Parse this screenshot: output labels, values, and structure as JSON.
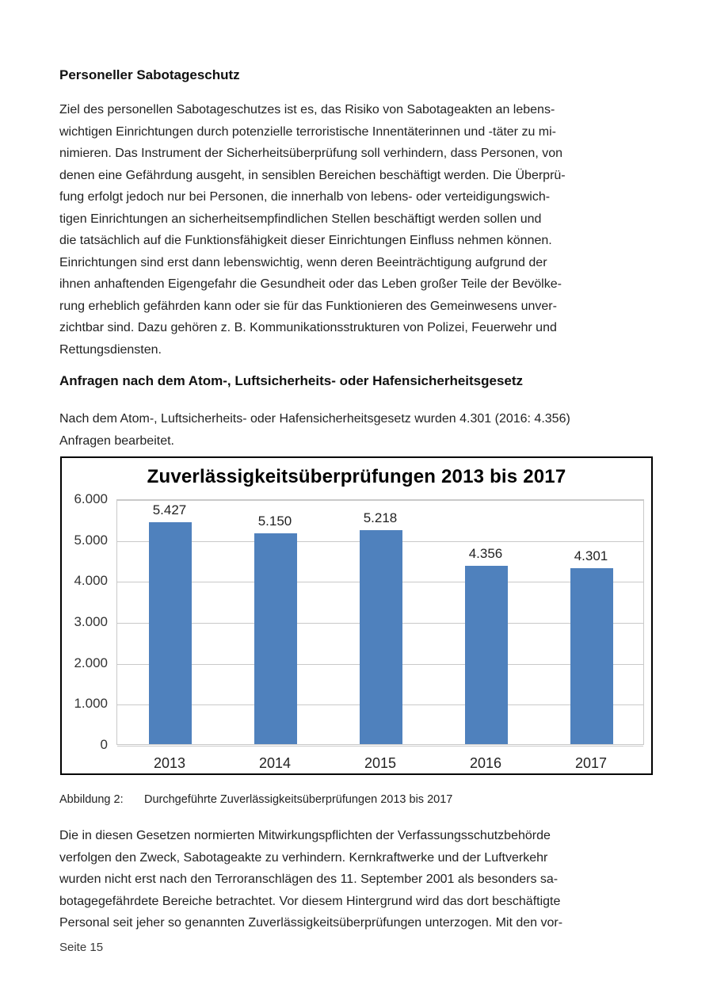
{
  "page": {
    "heading1": "Personeller Sabotageschutz",
    "paragraph1_lines": [
      "Ziel des personellen Sabotageschutzes ist es, das Risiko von Sabotageakten an lebens-",
      "wichtigen Einrichtungen durch potenzielle terroristische Innentäterinnen und -täter zu mi-",
      "nimieren. Das Instrument der Sicherheitsüberprüfung soll verhindern, dass Personen, von",
      "denen eine Gefährdung ausgeht, in sensiblen Bereichen beschäftigt werden. Die Überprü-",
      "fung erfolgt jedoch nur bei Personen, die innerhalb von lebens- oder verteidigungswich-",
      "tigen Einrichtungen an sicherheitsempfindlichen Stellen beschäftigt werden sollen und",
      "die tatsächlich auf die Funktionsfähigkeit dieser Einrichtungen Einfluss nehmen können.",
      "Einrichtungen sind erst dann lebenswichtig, wenn deren Beeinträchtigung aufgrund der",
      "ihnen anhaftenden Eigengefahr die Gesundheit oder das Leben großer Teile der Bevölke-",
      "rung erheblich gefährden kann oder sie für das Funktionieren des Gemeinwesens unver-",
      "zichtbar sind. Dazu gehören z. B. Kommunikationsstrukturen von Polizei, Feuerwehr und",
      "Rettungsdiensten."
    ],
    "heading2": "Anfragen nach dem Atom-, Luftsicherheits- oder Hafensicherheitsgesetz",
    "paragraph2_lines": [
      "Nach dem Atom-, Luftsicherheits- oder Hafensicherheitsgesetz wurden 4.301 (2016: 4.356)",
      "Anfragen bearbeitet."
    ],
    "caption": {
      "label": "Abbildung 2:",
      "text": "Durchgeführte Zuverlässigkeitsüberprüfungen 2013 bis 2017"
    },
    "paragraph3_lines": [
      "Die in diesen Gesetzen normierten Mitwirkungspflichten der Verfassungsschutzbehörde",
      "verfolgen den Zweck, Sabotageakte zu verhindern. Kernkraftwerke und der Luftverkehr",
      "wurden nicht erst nach den Terroranschlägen des 11. September 2001 als besonders sa-",
      "botagegefährdete Bereiche betrachtet. Vor diesem Hintergrund wird das dort beschäftigte",
      "Personal seit jeher so genannten Zuverlässigkeitsüberprüfungen unterzogen. Mit den vor-"
    ],
    "footer": "Seite 15"
  },
  "chart_data": {
    "type": "bar",
    "title": "Zuverlässigkeitsüberprüfungen 2013 bis 2017",
    "categories": [
      "2013",
      "2014",
      "2015",
      "2016",
      "2017"
    ],
    "values": [
      5427,
      5150,
      5218,
      4356,
      4301
    ],
    "value_labels": [
      "5.427",
      "5.150",
      "5.218",
      "4.356",
      "4.301"
    ],
    "y_tick_labels": [
      "6.000",
      "5.000",
      "4.000",
      "3.000",
      "2.000",
      "1.000",
      "0"
    ],
    "y_tick_values": [
      6000,
      5000,
      4000,
      3000,
      2000,
      1000,
      0
    ],
    "ylim": [
      0,
      6000
    ],
    "xlabel": "",
    "ylabel": "",
    "grid": true,
    "legend_position": "none",
    "bar_color": "#4f81bd",
    "grid_color": "#c9c9c9",
    "border_color": "#000000"
  }
}
